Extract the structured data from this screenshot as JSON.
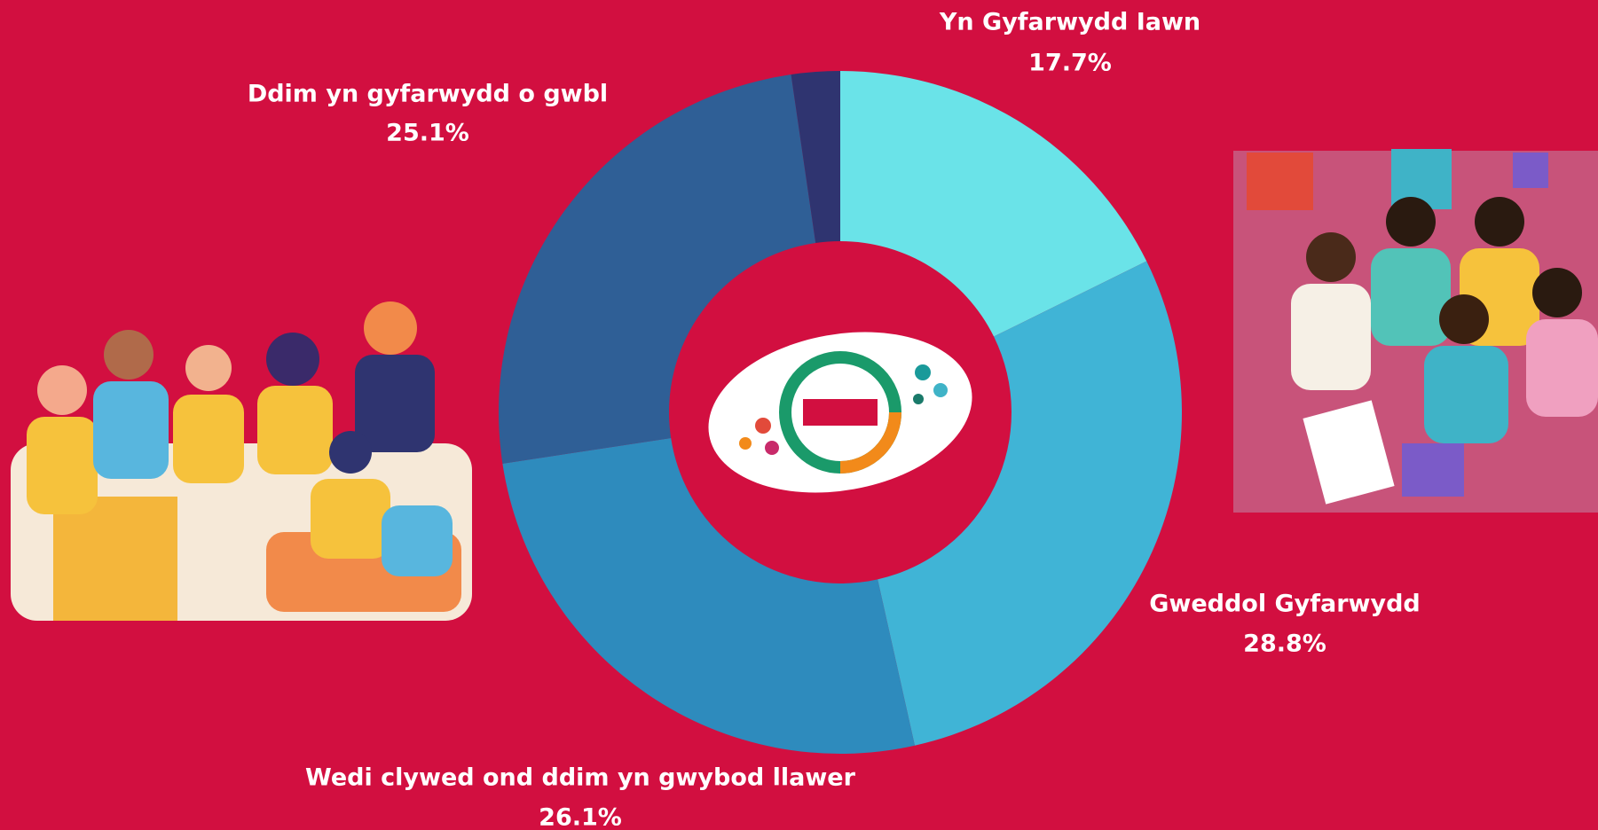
{
  "chart_data": {
    "type": "donut",
    "categories": [
      "Yn Gyfarwydd Iawn",
      "Gweddol Gyfarwydd",
      "Wedi clywed ond ddim yn gwybod llawer",
      "Ddim yn gyfarwydd o gwbl",
      null
    ],
    "values": [
      17.7,
      28.8,
      26.1,
      25.1,
      2.3
    ],
    "value_labels": [
      "17.7%",
      "28.8%",
      "26.1%",
      "25.1%",
      null
    ],
    "colors": [
      "#6ae3e8",
      "#40b4d6",
      "#2e8bbd",
      "#2f5f96",
      "#2f3470"
    ]
  }
}
